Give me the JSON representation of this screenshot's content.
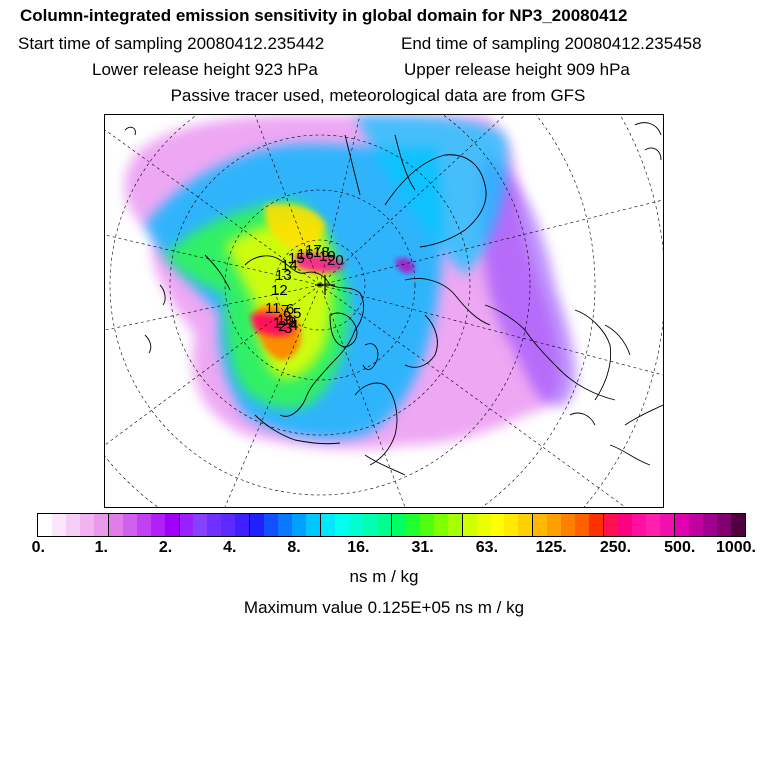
{
  "header": {
    "title": "Column-integrated emission sensitivity in global domain for NP3_20080412",
    "start_time": "Start time of sampling 20080412.235442",
    "end_time": "End time of sampling 20080412.235458",
    "lower_release": "Lower release height  923 hPa",
    "upper_release": "Upper release height  909 hPa",
    "tracer_note": "Passive tracer used, meteorological data are from GFS"
  },
  "map": {
    "projection": "polar stereographic (north polar)",
    "trajectory_labels": [
      "1",
      "2",
      "3",
      "4",
      "5",
      "6",
      "7",
      "8",
      "9",
      "10",
      "11",
      "12",
      "13",
      "14",
      "15",
      "16",
      "17",
      "18",
      "19",
      "20"
    ],
    "receptor_marker": "plus"
  },
  "colorbar": {
    "colors": [
      "#ffffff",
      "#fbe6fb",
      "#f6cdf6",
      "#f1b4f1",
      "#eb9aeb",
      "#e07de8",
      "#d060ee",
      "#c040f2",
      "#b020f6",
      "#a000fa",
      "#9a20ff",
      "#8840ff",
      "#7030ff",
      "#5a2aff",
      "#4020ff",
      "#2020ff",
      "#1050ff",
      "#0a78ff",
      "#00a0ff",
      "#00c8ff",
      "#00eaff",
      "#00ffee",
      "#00ffd0",
      "#00ffb0",
      "#00ff90",
      "#00ff60",
      "#20ff30",
      "#50ff10",
      "#80ff00",
      "#a8ff00",
      "#d0ff00",
      "#ecff00",
      "#ffff00",
      "#ffea00",
      "#ffd000",
      "#ffb800",
      "#ffa000",
      "#ff8000",
      "#ff6000",
      "#ff3000",
      "#ff1050",
      "#ff0080",
      "#ff10a0",
      "#ff20b0",
      "#f010b0",
      "#e000b0",
      "#c000a0",
      "#a00090",
      "#800070",
      "#500040"
    ],
    "tick_labels": [
      "0.",
      "1.",
      "2.",
      "4.",
      "8.",
      "16.",
      "31.",
      "63.",
      "125.",
      "250.",
      "500.",
      "1000."
    ],
    "units": "ns m / kg"
  },
  "footer": {
    "max_value": "Maximum value  0.125E+05 ns m / kg"
  }
}
